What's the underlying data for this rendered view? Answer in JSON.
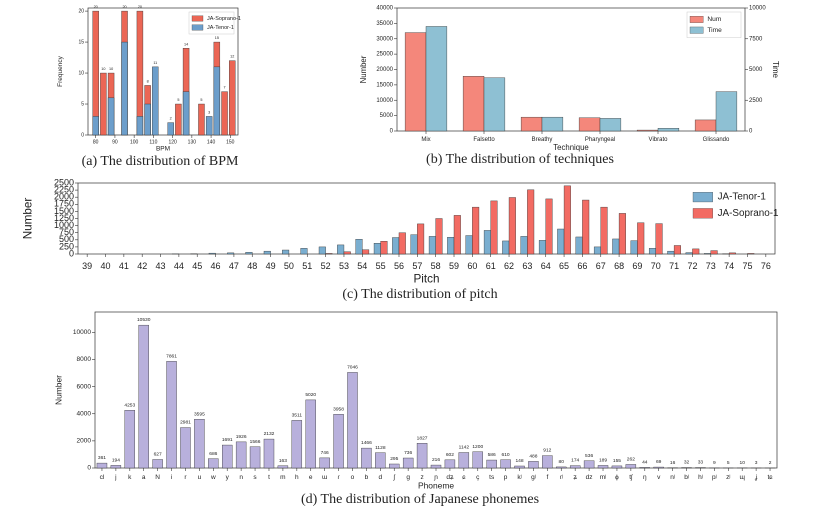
{
  "chart_data": [
    {
      "type": "bar",
      "barmode": "overlay",
      "bar_labels": true,
      "caption": "(a) The distribution of BPM",
      "xlabel": "BPM",
      "ylabel": "Frequency",
      "x": [
        80,
        84,
        88,
        95,
        103,
        107,
        111,
        119,
        123,
        127,
        135,
        139,
        143,
        147,
        151
      ],
      "xlim": [
        76,
        154
      ],
      "xticks": [
        80,
        90,
        100,
        110,
        120,
        130,
        140,
        150
      ],
      "ylim": [
        0,
        20.5
      ],
      "yticks": [
        0,
        5,
        10,
        15,
        20
      ],
      "legend": "upper right",
      "series": [
        {
          "name": "JA-Soprano-1",
          "color": "#eb6655",
          "values": [
            20,
            10,
            10,
            20,
            20,
            8,
            null,
            null,
            5,
            14,
            5,
            null,
            15,
            7,
            12
          ]
        },
        {
          "name": "JA-Tenor-1",
          "color": "#6c9ecb",
          "values": [
            3,
            null,
            6,
            15,
            3,
            5,
            11,
            2,
            null,
            7,
            null,
            3,
            11,
            null,
            null
          ]
        }
      ]
    },
    {
      "type": "bar",
      "barmode": "group",
      "caption": "(b) The distribution of techniques",
      "xlabel": "Technique",
      "ylabel": "Number",
      "y2label": "Time",
      "categories": [
        "Mix",
        "Falsetto",
        "Breathy",
        "Pharyngeal",
        "Vibrato",
        "Glissando"
      ],
      "ylim": [
        0,
        40000
      ],
      "yticks": [
        0,
        5000,
        10000,
        15000,
        20000,
        25000,
        30000,
        35000,
        40000
      ],
      "y2lim": [
        0,
        10000
      ],
      "y2ticks": [
        0,
        2500,
        5000,
        7500,
        10000
      ],
      "legend": "upper right",
      "series": [
        {
          "name": "Num",
          "color": "#f4877b",
          "values": [
            32000,
            17800,
            4500,
            4300,
            300,
            3600
          ]
        },
        {
          "name": "Time",
          "color": "#8ec0d3",
          "axis": "y2",
          "values": [
            8500,
            4325,
            1125,
            1025,
            225,
            3200
          ]
        }
      ]
    },
    {
      "type": "bar",
      "barmode": "group",
      "caption": "(c) The distribution of pitch",
      "xlabel": "Pitch",
      "ylabel": "Number",
      "categories": [
        39,
        40,
        41,
        42,
        43,
        44,
        45,
        46,
        47,
        48,
        49,
        50,
        51,
        52,
        53,
        54,
        55,
        56,
        57,
        58,
        59,
        60,
        61,
        62,
        63,
        64,
        65,
        66,
        67,
        68,
        69,
        70,
        71,
        72,
        73,
        74,
        75,
        76
      ],
      "ylim": [
        0,
        2500
      ],
      "yticks": [
        0,
        250,
        500,
        750,
        1000,
        1250,
        1500,
        1750,
        2000,
        2250,
        2500
      ],
      "legend": "upper right",
      "series": [
        {
          "name": "JA-Tenor-1",
          "color": "#7aaed0",
          "values": [
            0,
            0,
            0,
            0,
            0,
            5,
            10,
            30,
            40,
            60,
            100,
            140,
            200,
            250,
            320,
            520,
            380,
            580,
            680,
            620,
            590,
            650,
            830,
            460,
            620,
            480,
            880,
            600,
            250,
            530,
            470,
            200,
            100,
            50,
            20,
            10,
            0,
            0
          ]
        },
        {
          "name": "JA-Soprano-1",
          "color": "#f26b63",
          "values": [
            0,
            0,
            0,
            0,
            0,
            0,
            0,
            0,
            0,
            0,
            0,
            0,
            0,
            20,
            80,
            150,
            450,
            750,
            1060,
            1250,
            1360,
            1650,
            1870,
            1990,
            2260,
            1940,
            2400,
            1900,
            1650,
            1430,
            1100,
            1070,
            300,
            180,
            120,
            40,
            20,
            0
          ]
        }
      ]
    },
    {
      "type": "bar",
      "barmode": "group",
      "bar_labels": true,
      "caption": "(d) The distribution of Japanese phonemes",
      "xlabel": "Phoneme",
      "ylabel": "Number",
      "categories": [
        "cl",
        "j",
        "k",
        "a",
        "N",
        "i",
        "r",
        "u",
        "w",
        "y",
        "n",
        "s",
        "t",
        "m",
        "h",
        "e",
        "ɯ",
        "ɾ",
        "o",
        "b",
        "d",
        "ʃ",
        "ɡ",
        "z",
        "ɲ",
        "dʑ",
        "ɕ",
        "ç",
        "ts",
        "p",
        "kʲ",
        "ɡʲ",
        "f",
        "ɾʲ",
        "ʑ",
        "dz",
        "mʲ",
        "ɸ",
        "tʃ",
        "ŋ",
        "v",
        "nʲ",
        "bʲ",
        "hʲ",
        "pʲ",
        "zʲ",
        "ɰ",
        "ʝ",
        "tɕ"
      ],
      "ylim": [
        0,
        11500
      ],
      "yticks": [
        0,
        2000,
        4000,
        6000,
        8000,
        10000
      ],
      "series": [
        {
          "color": "#b8b0dc",
          "values": [
            361,
            194,
            4253,
            10530,
            627,
            7861,
            2981,
            3595,
            686,
            1691,
            1926,
            1566,
            2132,
            163,
            3511,
            5020,
            746,
            3958,
            7046,
            1466,
            1128,
            295,
            736,
            1827,
            216,
            602,
            1142,
            1200,
            586,
            610,
            148,
            488,
            912,
            80,
            174,
            536,
            189,
            155,
            262,
            44,
            69,
            16,
            32,
            33,
            9,
            5,
            10,
            3,
            2
          ]
        }
      ]
    }
  ]
}
